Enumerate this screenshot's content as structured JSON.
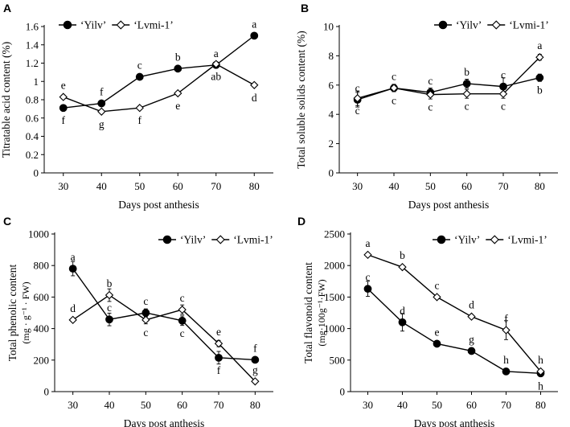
{
  "figure": {
    "background": "#ffffff",
    "line_color": "#000000"
  },
  "chart_data": [
    {
      "panel": "A",
      "type": "line",
      "title": "",
      "xlabel": "Days post anthesis",
      "ylabel": "Titratable acid content (%)",
      "x": [
        30,
        40,
        50,
        60,
        70,
        80
      ],
      "xlim": [
        25,
        85
      ],
      "ylim": [
        0,
        1.6
      ],
      "yticks": [
        0,
        0.2,
        0.4,
        0.6,
        0.8,
        1,
        1.2,
        1.4,
        1.6
      ],
      "ytick_labels": [
        "0",
        "0.2",
        "0.4",
        "0.6",
        "0.8",
        "1",
        "1.2",
        "1.4",
        "1.6"
      ],
      "legend_loc": "top-left",
      "series": [
        {
          "name": "‘Yilv’",
          "marker": "filled-circle",
          "values": [
            0.71,
            0.76,
            1.05,
            1.14,
            1.18,
            1.5
          ],
          "errors": [
            0.02,
            0.02,
            0.02,
            0.02,
            0.02,
            0.02
          ],
          "letters": [
            "f",
            "f",
            "c",
            "b",
            "a",
            "a"
          ],
          "letter_pos": [
            "below",
            "above",
            "above",
            "above",
            "above",
            "above"
          ]
        },
        {
          "name": "‘Lvmi-1’",
          "marker": "open-diamond",
          "values": [
            0.83,
            0.67,
            0.71,
            0.87,
            1.19,
            0.96
          ],
          "errors": [
            0.02,
            0.02,
            0.02,
            0.02,
            0.02,
            0.02
          ],
          "letters": [
            "e",
            "g",
            "f",
            "e",
            "ab",
            "d"
          ],
          "letter_pos": [
            "above",
            "below",
            "below",
            "below",
            "below",
            "below"
          ]
        }
      ]
    },
    {
      "panel": "B",
      "type": "line",
      "title": "",
      "xlabel": "Days  post anthesis",
      "ylabel": "Total soluble solids content (%)",
      "x": [
        30,
        40,
        50,
        60,
        70,
        80
      ],
      "xlim": [
        25,
        85
      ],
      "ylim": [
        0,
        10
      ],
      "yticks": [
        0,
        2,
        4,
        6,
        8,
        10
      ],
      "ytick_labels": [
        "0",
        "2",
        "4",
        "6",
        "8",
        "10"
      ],
      "legend_loc": "top-right",
      "series": [
        {
          "name": "‘Yilv’",
          "marker": "filled-circle",
          "values": [
            5.0,
            5.8,
            5.5,
            6.1,
            5.9,
            6.5
          ],
          "errors": [
            0.5,
            0.25,
            0.3,
            0.3,
            0.6,
            0.25
          ],
          "letters": [
            "c",
            "c",
            "c",
            "b",
            "c",
            "b"
          ],
          "letter_pos": [
            "above",
            "above",
            "above",
            "above",
            "above",
            "below"
          ]
        },
        {
          "name": "‘Lvmi-1’",
          "marker": "open-diamond",
          "values": [
            5.1,
            5.8,
            5.35,
            5.4,
            5.4,
            7.9
          ],
          "errors": [
            0.5,
            0.25,
            0.3,
            0.3,
            0.3,
            0.2
          ],
          "letters": [
            "c",
            "c",
            "c",
            "c",
            "c",
            "a"
          ],
          "letter_pos": [
            "below",
            "below",
            "below",
            "below",
            "below",
            "above"
          ]
        }
      ]
    },
    {
      "panel": "C",
      "type": "line",
      "title": "",
      "xlabel": "Days post anthesis",
      "ylabel": "Total phenolic content",
      "ylabel2": "(mg · g⁻¹ · FW)",
      "x": [
        30,
        40,
        50,
        60,
        70,
        80
      ],
      "xlim": [
        25,
        85
      ],
      "ylim": [
        0,
        1000
      ],
      "yticks": [
        0,
        200,
        400,
        600,
        800,
        1000
      ],
      "ytick_labels": [
        "0",
        "200",
        "400",
        "600",
        "800",
        "1000"
      ],
      "legend_loc": "top-right",
      "series": [
        {
          "name": "‘Yilv’",
          "marker": "filled-circle",
          "values": [
            780,
            458,
            500,
            450,
            215,
            202
          ],
          "errors": [
            45,
            40,
            25,
            30,
            40,
            10
          ],
          "letters": [
            "a",
            "c",
            "c",
            "c",
            "f",
            "f"
          ],
          "letter_pos": [
            "above",
            "above",
            "above",
            "below",
            "below",
            "above"
          ]
        },
        {
          "name": "‘Lvmi-1’",
          "marker": "open-diamond",
          "values": [
            455,
            612,
            455,
            520,
            305,
            65
          ],
          "errors": [
            10,
            40,
            25,
            30,
            20,
            5
          ],
          "letters": [
            "d",
            "b",
            "c",
            "c",
            "e",
            "g"
          ],
          "letter_pos": [
            "above",
            "above",
            "below",
            "above",
            "above",
            "above"
          ]
        }
      ]
    },
    {
      "panel": "D",
      "type": "line",
      "title": "",
      "xlabel": "Days post anthesis",
      "ylabel": "Total flavonoid content",
      "ylabel2": "(mg·100g⁻¹·FW)",
      "x": [
        30,
        40,
        50,
        60,
        70,
        80
      ],
      "xlim": [
        25,
        85
      ],
      "ylim": [
        0,
        2500
      ],
      "yticks": [
        0,
        500,
        1000,
        1500,
        2000,
        2500
      ],
      "ytick_labels": [
        "0",
        "500",
        "1000",
        "1500",
        "2000",
        "2500"
      ],
      "legend_loc": "top-right",
      "series": [
        {
          "name": "‘Yilv’",
          "marker": "filled-circle",
          "values": [
            1630,
            1100,
            760,
            645,
            320,
            290
          ],
          "errors": [
            120,
            140,
            20,
            50,
            20,
            20
          ],
          "letters": [
            "c",
            "d",
            "e",
            "g",
            "h",
            "h"
          ],
          "letter_pos": [
            "above",
            "above",
            "above",
            "above",
            "above",
            "below"
          ]
        },
        {
          "name": "‘Lvmi-1’",
          "marker": "open-diamond",
          "values": [
            2170,
            1975,
            1500,
            1190,
            975,
            320
          ],
          "errors": [
            15,
            30,
            20,
            20,
            150,
            20
          ],
          "letters": [
            "a",
            "b",
            "c",
            "d",
            "f",
            "h"
          ],
          "letter_pos": [
            "above",
            "above",
            "above",
            "above",
            "above",
            "above"
          ]
        }
      ]
    }
  ]
}
